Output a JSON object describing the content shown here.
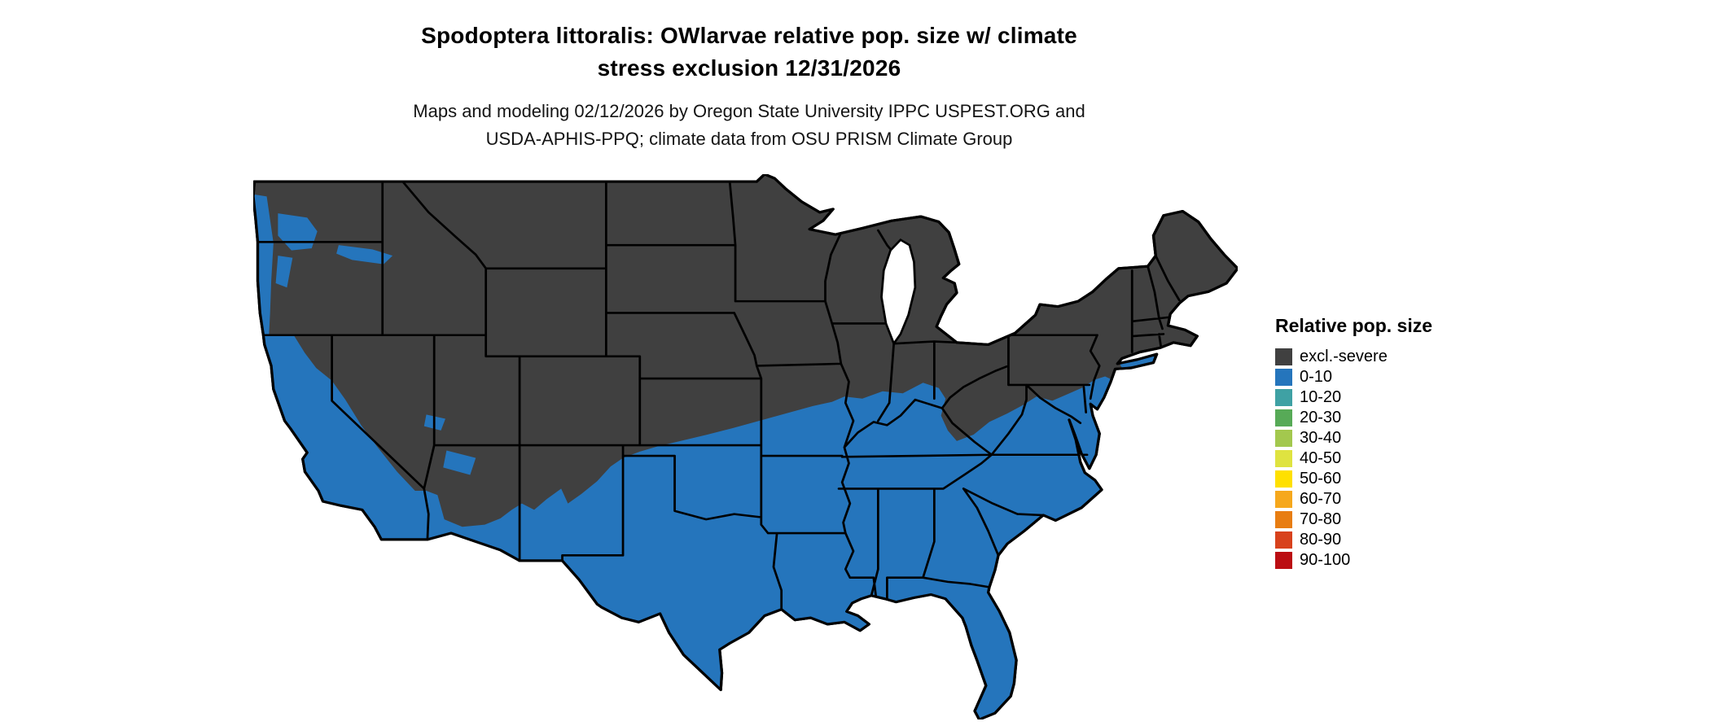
{
  "header": {
    "title_line1": "Spodoptera littoralis: OWlarvae relative pop. size w/ climate",
    "title_line2": "stress exclusion 12/31/2026",
    "subtitle_line1": "Maps and modeling 02/12/2026 by Oregon State University IPPC USPEST.ORG and",
    "subtitle_line2": "USDA-APHIS-PPQ; climate data from OSU PRISM Climate Group"
  },
  "legend": {
    "title": "Relative pop. size",
    "items": [
      {
        "label": "excl.-severe",
        "color": "#404040"
      },
      {
        "label": "0-10",
        "color": "#2575bc"
      },
      {
        "label": "10-20",
        "color": "#3fa1a4"
      },
      {
        "label": "20-30",
        "color": "#57aa57"
      },
      {
        "label": "30-40",
        "color": "#a3c84e"
      },
      {
        "label": "40-50",
        "color": "#dfe340"
      },
      {
        "label": "50-60",
        "color": "#ffe000"
      },
      {
        "label": "60-70",
        "color": "#f6a81c"
      },
      {
        "label": "70-80",
        "color": "#e87d12"
      },
      {
        "label": "80-90",
        "color": "#d8421c"
      },
      {
        "label": "90-100",
        "color": "#bb0d12"
      }
    ]
  },
  "map": {
    "colors": {
      "excluded_severe": "#404040",
      "pop_0_10": "#2575bc",
      "border": "#000000",
      "water": "#ffffff",
      "background": "#ffffff"
    }
  }
}
